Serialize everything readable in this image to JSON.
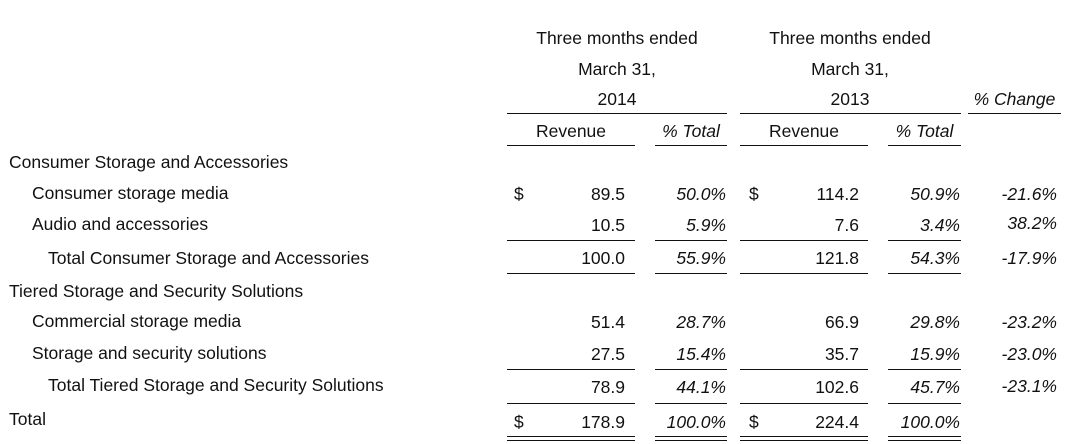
{
  "header": {
    "period_a": {
      "line1": "Three months ended",
      "line2": "March 31,",
      "year": "2014"
    },
    "period_b": {
      "line1": "Three months ended",
      "line2": "March 31,",
      "year": "2013"
    },
    "change_label": "% Change",
    "revenue_label": "Revenue",
    "pct_total_label": "% Total"
  },
  "rows": {
    "csa_header": {
      "label": "Consumer Storage and Accessories"
    },
    "csm": {
      "label": "Consumer storage media",
      "cur_a": "$",
      "rev_a": "89.5",
      "pct_a": "50.0%",
      "cur_b": "$",
      "rev_b": "114.2",
      "pct_b": "50.9%",
      "change": "-21.6%"
    },
    "aa": {
      "label": "Audio and accessories",
      "rev_a": "10.5",
      "pct_a": "5.9%",
      "rev_b": "7.6",
      "pct_b": "3.4%",
      "change": "38.2%"
    },
    "csa_total": {
      "label": "Total Consumer Storage and Accessories",
      "rev_a": "100.0",
      "pct_a": "55.9%",
      "rev_b": "121.8",
      "pct_b": "54.3%",
      "change": "-17.9%"
    },
    "tss_header": {
      "label": "Tiered Storage and Security Solutions"
    },
    "comm": {
      "label": "Commercial storage media",
      "rev_a": "51.4",
      "pct_a": "28.7%",
      "rev_b": "66.9",
      "pct_b": "29.8%",
      "change": "-23.2%"
    },
    "sss": {
      "label": "Storage and security solutions",
      "rev_a": "27.5",
      "pct_a": "15.4%",
      "rev_b": "35.7",
      "pct_b": "15.9%",
      "change": "-23.0%"
    },
    "tss_total": {
      "label": "Total Tiered Storage and Security Solutions",
      "rev_a": "78.9",
      "pct_a": "44.1%",
      "rev_b": "102.6",
      "pct_b": "45.7%",
      "change": "-23.1%"
    },
    "total": {
      "label": "Total",
      "cur_a": "$",
      "rev_a": "178.9",
      "pct_a": "100.0%",
      "cur_b": "$",
      "rev_b": "224.4",
      "pct_b": "100.0%"
    }
  }
}
